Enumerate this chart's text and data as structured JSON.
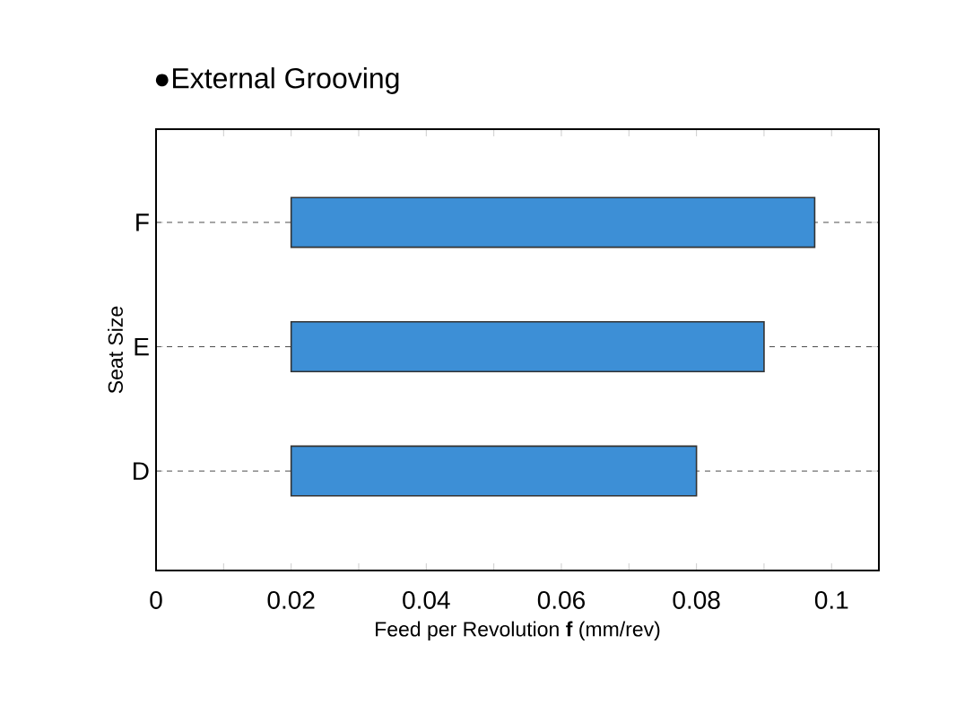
{
  "chart_data": {
    "type": "bar",
    "orientation": "horizontal",
    "title": "●External Grooving",
    "xlabel": "Feed per Revolution **f** (mm/rev)",
    "ylabel": "Seat Size",
    "categories": [
      "F",
      "E",
      "D"
    ],
    "base": [
      0.02,
      0.02,
      0.02
    ],
    "values": [
      0.0775,
      0.07,
      0.06
    ],
    "color": "#3d8fd6",
    "xlim": [
      0,
      0.107
    ],
    "xticks": [
      0,
      {
        "value": 0.01,
        "label": null
      },
      0.02,
      {
        "value": 0.03,
        "label": null
      },
      0.04,
      {
        "value": 0.05,
        "label": null
      },
      0.06,
      {
        "value": 0.07,
        "label": null
      },
      0.08,
      {
        "value": 0.09,
        "label": null
      },
      0.1
    ],
    "grid": "y"
  }
}
